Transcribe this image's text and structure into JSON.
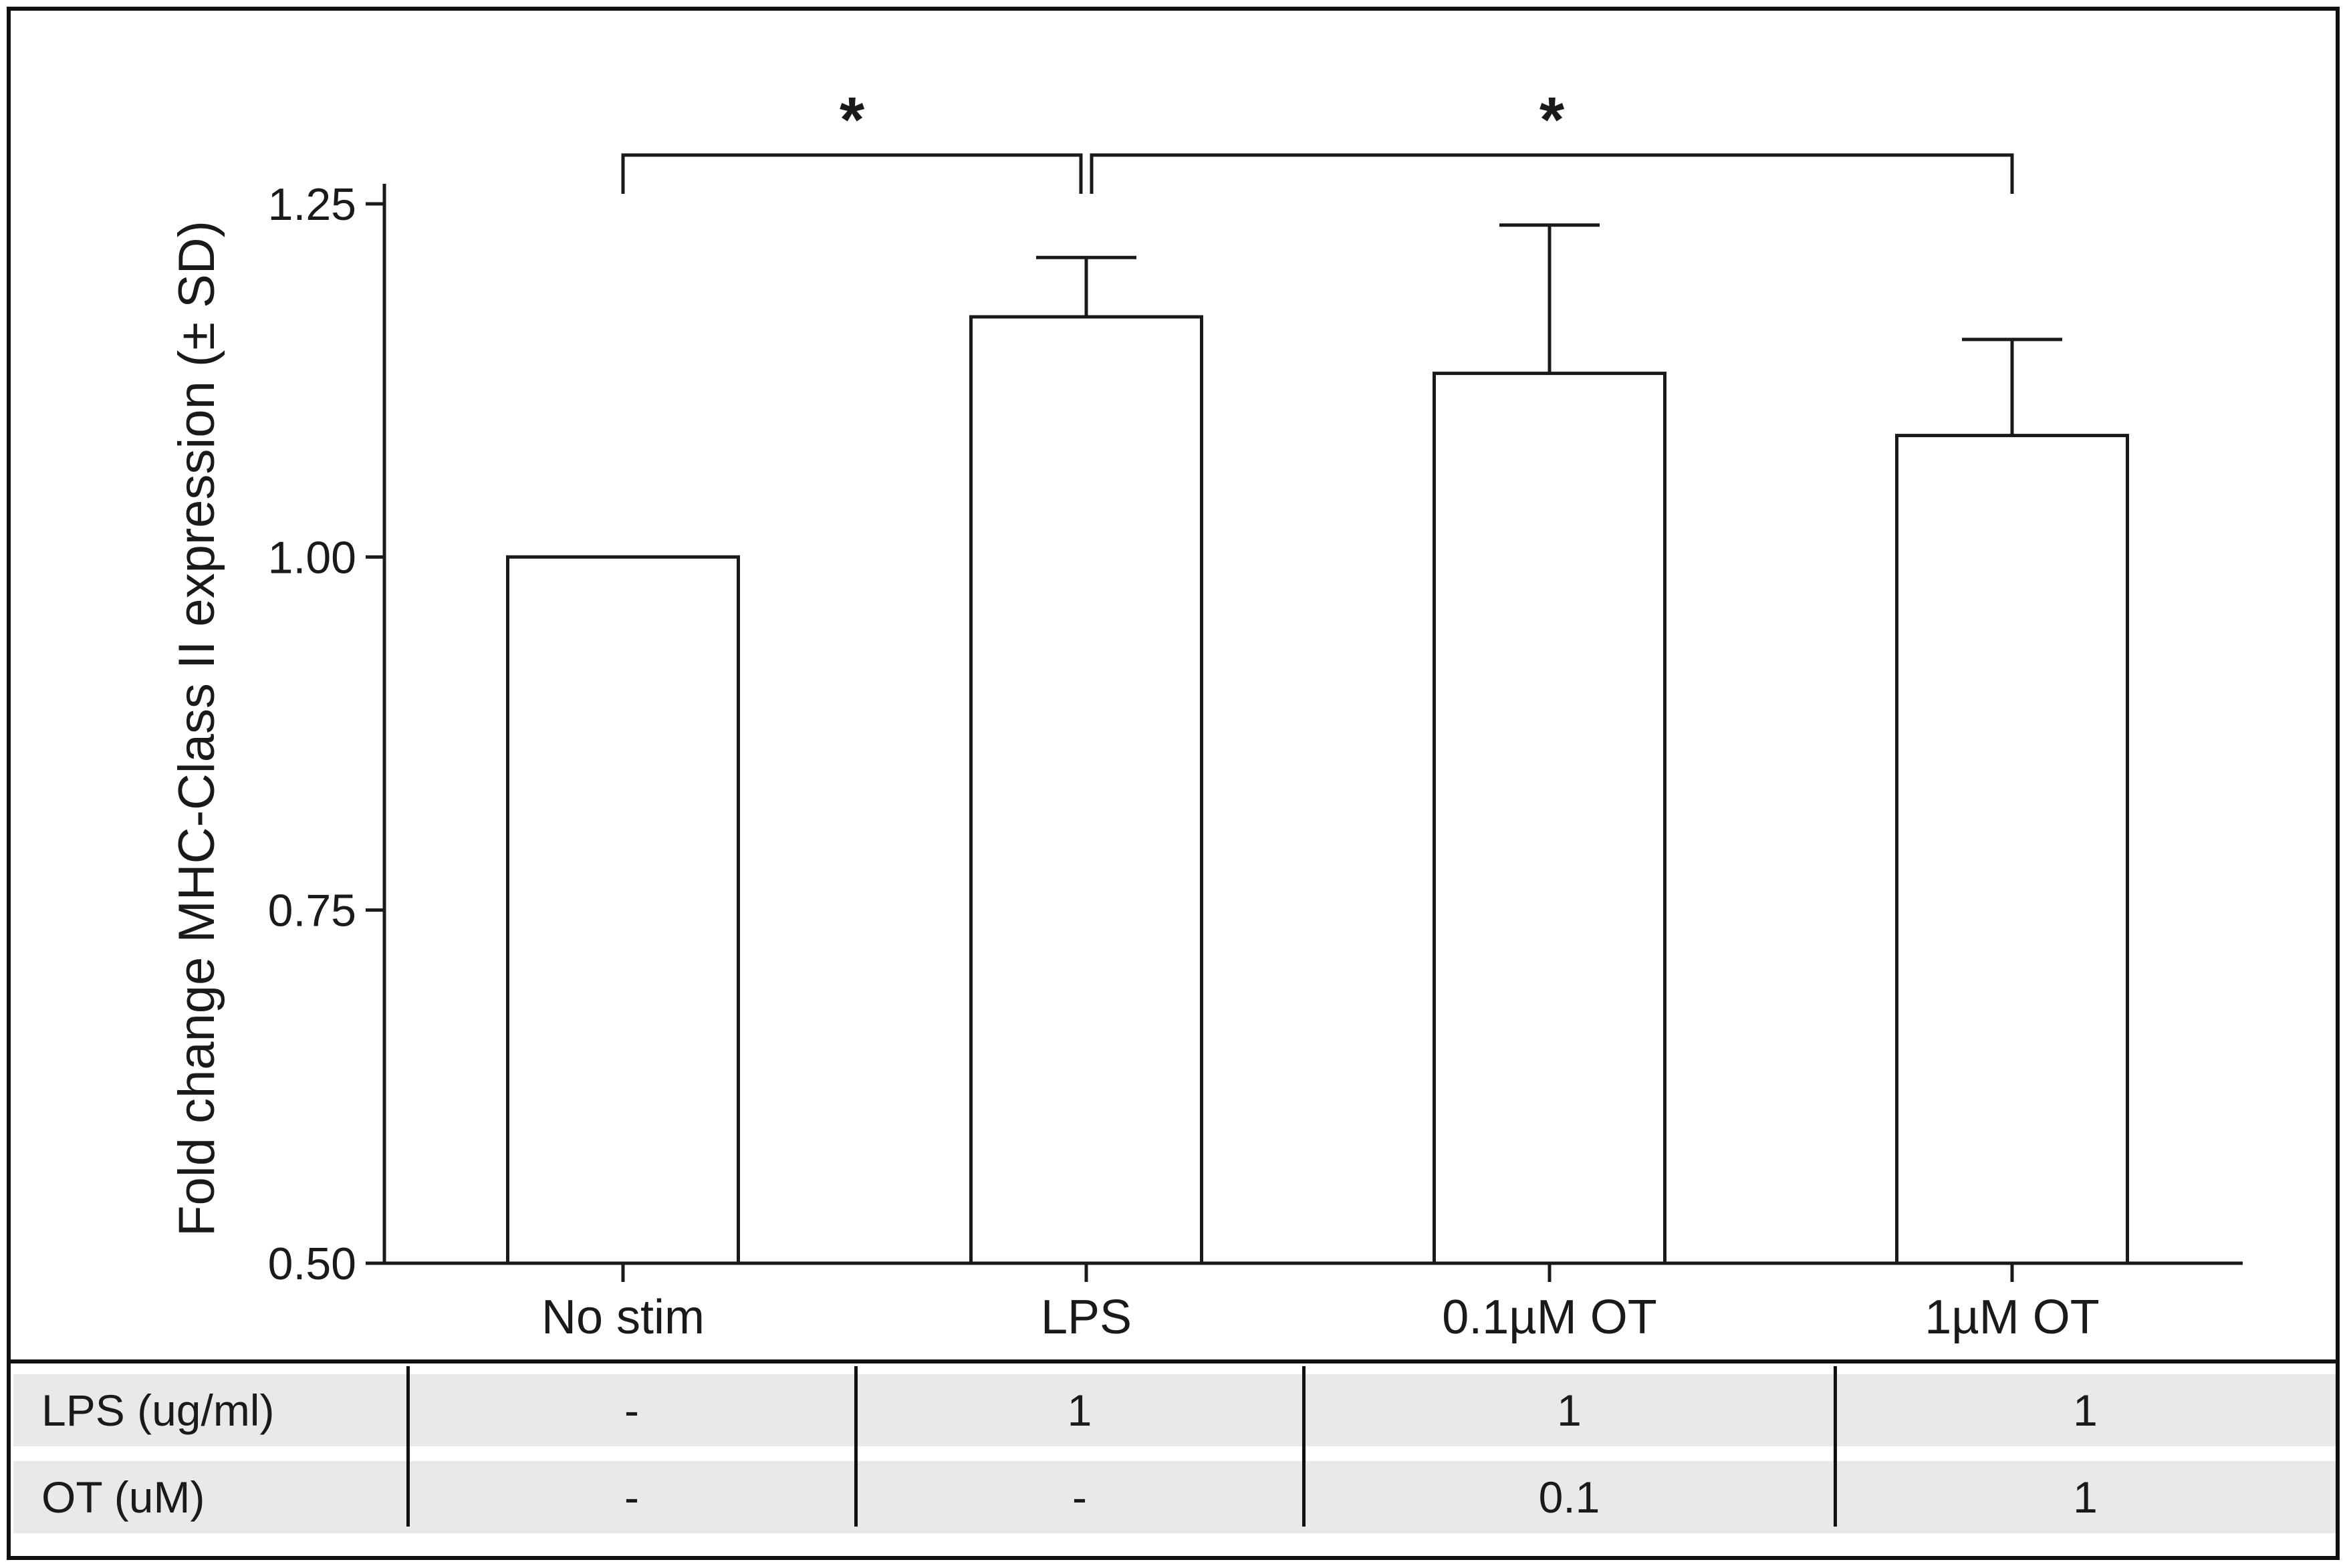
{
  "chart_data": {
    "type": "bar",
    "categories": [
      "No stim",
      "LPS",
      "0.1µM OT",
      "1µM OT"
    ],
    "values": [
      1.0,
      1.17,
      1.13,
      1.086
    ],
    "errors": [
      0.0,
      0.042,
      0.105,
      0.068
    ],
    "ylabel": "Fold change MHC-Class II expression (± SD)",
    "xlabel": "",
    "ylim": [
      0.5,
      1.25
    ],
    "yticks": [
      "0.50",
      "0.75",
      "1.00",
      "1.25"
    ],
    "ytick_values": [
      0.5,
      0.75,
      1.0,
      1.25
    ],
    "significance": [
      {
        "from": 0,
        "to": 1,
        "label": "*"
      },
      {
        "from": 1,
        "to": 3,
        "label": "*"
      }
    ],
    "bar_fill": "#ffffff",
    "bar_stroke": "#1a1a1a",
    "grid": false
  },
  "conditions_table": {
    "rows": [
      {
        "label": "LPS (ug/ml)",
        "cells": [
          "-",
          "1",
          "1",
          "1"
        ]
      },
      {
        "label": "OT (uM)",
        "cells": [
          "-",
          "-",
          "0.1",
          "1"
        ]
      }
    ],
    "background": "#e9e9e9"
  }
}
